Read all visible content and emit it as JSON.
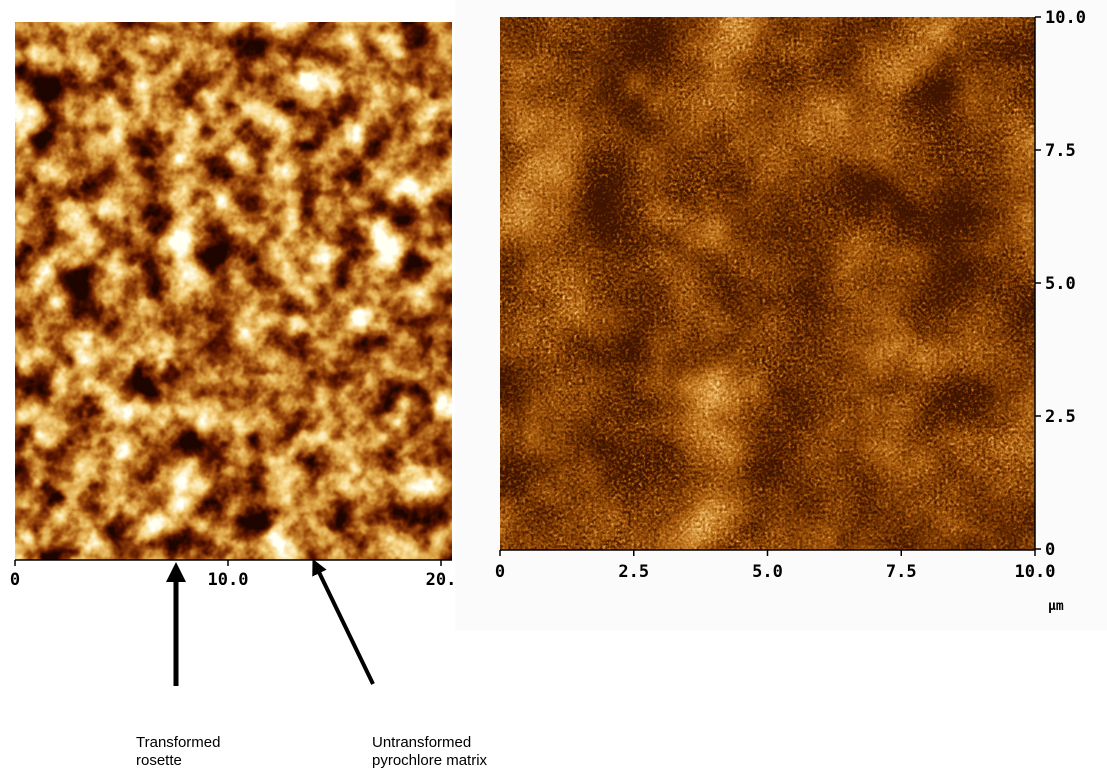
{
  "left_image": {
    "x_ticks": [
      "0",
      "10.0",
      "20."
    ]
  },
  "right_image": {
    "x_ticks": [
      "0",
      "2.5",
      "5.0",
      "7.5",
      "10.0"
    ],
    "y_ticks": [
      "0",
      "2.5",
      "5.0",
      "7.5",
      "10.0"
    ],
    "unit": "µm"
  },
  "annotations": [
    {
      "lines": [
        "Transformed",
        "rosette"
      ]
    },
    {
      "lines": [
        "Untransformed",
        "pyrochlore matrix"
      ]
    }
  ]
}
